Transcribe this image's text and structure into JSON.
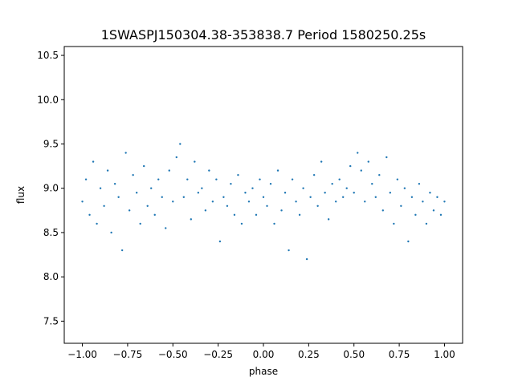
{
  "chart_data": {
    "type": "scatter",
    "title": "1SWASPJ150304.38-353838.7 Period 1580250.25s",
    "xlabel": "phase",
    "ylabel": "flux",
    "xlim": [
      -1.1,
      1.1
    ],
    "ylim": [
      7.25,
      10.6
    ],
    "xticks": [
      {
        "value": -1.0,
        "label": "−1.00"
      },
      {
        "value": -0.75,
        "label": "−0.75"
      },
      {
        "value": -0.5,
        "label": "−0.50"
      },
      {
        "value": -0.25,
        "label": "−0.25"
      },
      {
        "value": 0.0,
        "label": "0.00"
      },
      {
        "value": 0.25,
        "label": "0.25"
      },
      {
        "value": 0.5,
        "label": "0.50"
      },
      {
        "value": 0.75,
        "label": "0.75"
      },
      {
        "value": 1.0,
        "label": "1.00"
      }
    ],
    "yticks": [
      {
        "value": 7.5,
        "label": "7.5"
      },
      {
        "value": 8.0,
        "label": "8.0"
      },
      {
        "value": 8.5,
        "label": "8.5"
      },
      {
        "value": 9.0,
        "label": "9.0"
      },
      {
        "value": 9.5,
        "label": "9.5"
      },
      {
        "value": 10.0,
        "label": "10.0"
      },
      {
        "value": 10.5,
        "label": "10.5"
      }
    ],
    "grid": false,
    "legend": "none",
    "marker_color": "#1f77b4",
    "series": [
      {
        "x": [
          -1.0,
          -0.98,
          -0.96,
          -0.94,
          -0.92,
          -0.9,
          -0.88,
          -0.86,
          -0.84,
          -0.82,
          -0.8,
          -0.78,
          -0.76,
          -0.74,
          -0.72,
          -0.7,
          -0.68,
          -0.66,
          -0.64,
          -0.62,
          -0.6,
          -0.58,
          -0.56,
          -0.54,
          -0.52,
          -0.5,
          -0.48,
          -0.46,
          -0.44,
          -0.42,
          -0.4,
          -0.38,
          -0.36,
          -0.34,
          -0.32,
          -0.3,
          -0.28,
          -0.26,
          -0.24,
          -0.22,
          -0.2,
          -0.18,
          -0.16,
          -0.14,
          -0.12,
          -0.1,
          -0.08,
          -0.06,
          -0.04,
          -0.02,
          0.0,
          0.02,
          0.04,
          0.06,
          0.08,
          0.1,
          0.12,
          0.14,
          0.16,
          0.18,
          0.2,
          0.22,
          0.24,
          0.26,
          0.28,
          0.3,
          0.32,
          0.34,
          0.36,
          0.38,
          0.4,
          0.42,
          0.44,
          0.46,
          0.48,
          0.5,
          0.52,
          0.54,
          0.56,
          0.58,
          0.6,
          0.62,
          0.64,
          0.66,
          0.68,
          0.7,
          0.72,
          0.74,
          0.76,
          0.78,
          0.8,
          0.82,
          0.84,
          0.86,
          0.88,
          0.9,
          0.92,
          0.94,
          0.96,
          0.98,
          1.0
        ],
        "y": [
          8.85,
          9.1,
          8.7,
          9.3,
          8.6,
          9.0,
          8.8,
          9.2,
          8.5,
          9.05,
          8.9,
          8.3,
          9.4,
          8.75,
          9.15,
          8.95,
          8.6,
          9.25,
          8.8,
          9.0,
          8.7,
          9.1,
          8.9,
          8.55,
          9.2,
          8.85,
          9.35,
          9.5,
          8.9,
          9.1,
          8.65,
          9.3,
          8.95,
          9.0,
          8.75,
          9.2,
          8.85,
          9.1,
          8.4,
          8.9,
          8.8,
          9.05,
          8.7,
          9.15,
          8.6,
          8.95,
          8.85,
          9.0,
          8.7,
          9.1,
          8.9,
          8.8,
          9.05,
          8.6,
          9.2,
          8.75,
          8.95,
          8.3,
          9.1,
          8.85,
          8.7,
          9.0,
          8.2,
          8.9,
          9.15,
          8.8,
          9.3,
          8.95,
          8.65,
          9.05,
          8.85,
          9.1,
          8.9,
          9.0,
          9.25,
          8.95,
          9.4,
          9.2,
          8.85,
          9.3,
          9.05,
          8.9,
          9.15,
          8.75,
          9.35,
          8.95,
          8.6,
          9.1,
          8.8,
          9.0,
          8.4,
          8.9,
          8.7,
          9.05,
          8.85,
          8.6,
          8.95,
          8.75,
          8.9,
          8.7,
          8.85
        ]
      }
    ]
  }
}
